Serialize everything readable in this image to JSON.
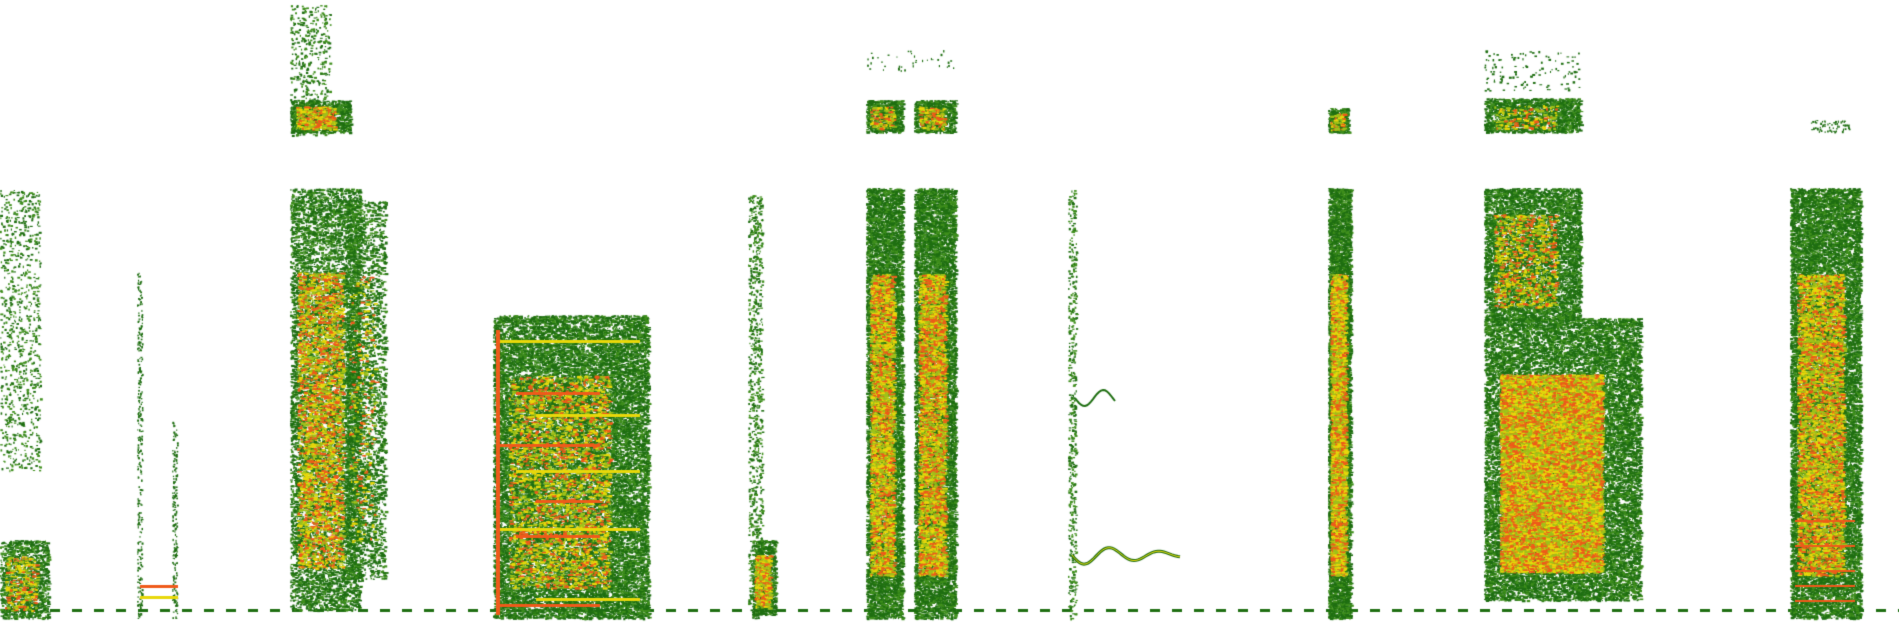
{
  "image": {
    "description_kind": "spectrogram",
    "background": "#ffffff",
    "palette": {
      "low": "#1f6f12",
      "mid_low": "#3f8f1c",
      "mid": "#9fc21a",
      "high": "#e8d80a",
      "peak": "#ef5a1a"
    }
  }
}
